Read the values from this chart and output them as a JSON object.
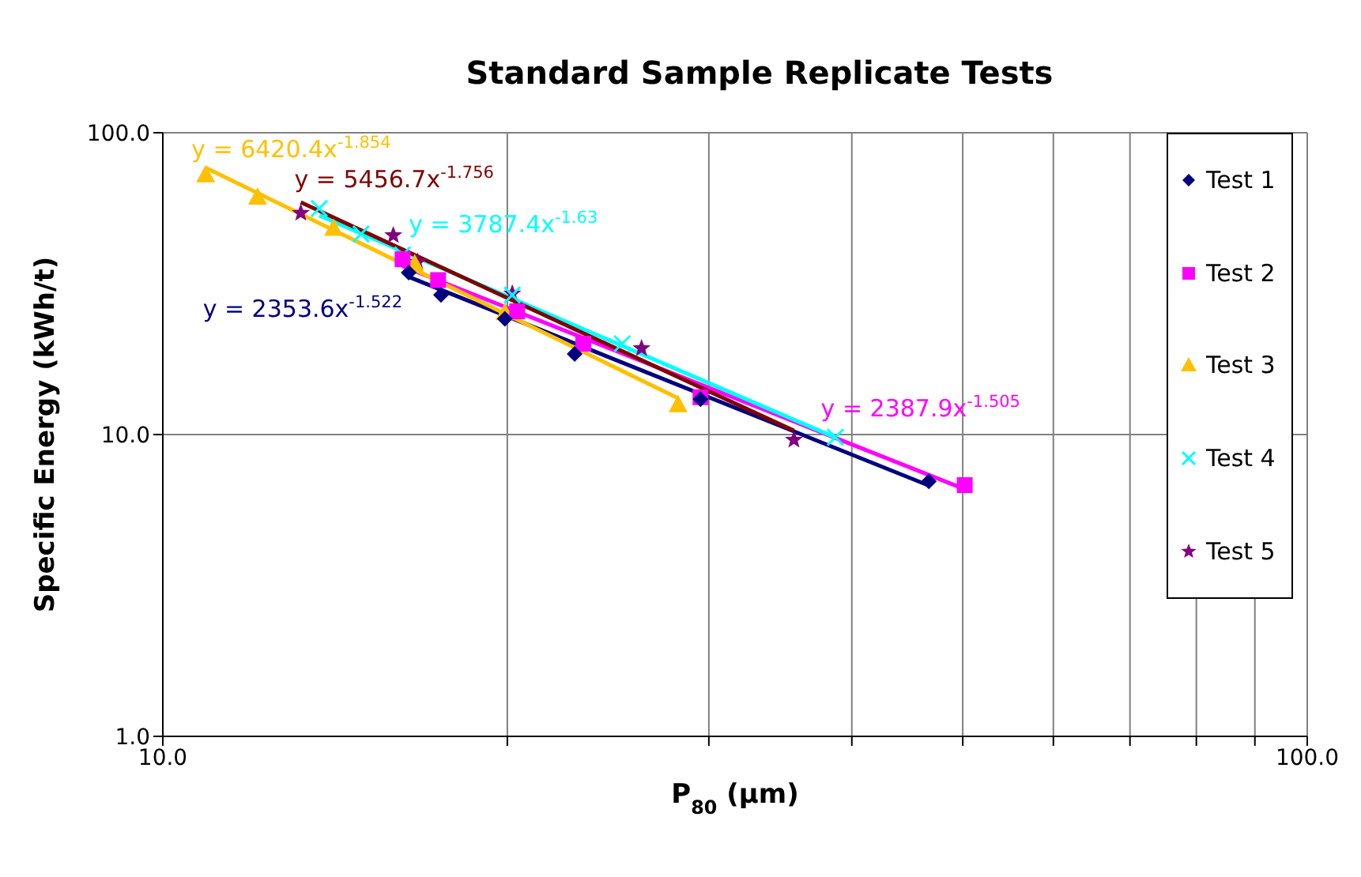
{
  "chart_data": {
    "type": "scatter",
    "title": "Standard Sample Replicate Tests",
    "xlabel": "P$_{80}$ (µm)",
    "ylabel": "Specific Energy (kWh/t)",
    "log": "xy",
    "grid": true,
    "legend": "right",
    "xlim": [
      10,
      100
    ],
    "ylim": [
      1,
      100
    ],
    "xticks": [
      {
        "value": 10,
        "label": "10.0"
      },
      {
        "value": 20,
        "label": null
      },
      {
        "value": 30,
        "label": null
      },
      {
        "value": 40,
        "label": null
      },
      {
        "value": 50,
        "label": null
      },
      {
        "value": 60,
        "label": null
      },
      {
        "value": 70,
        "label": null
      },
      {
        "value": 80,
        "label": null
      },
      {
        "value": 90,
        "label": null
      },
      {
        "value": 100,
        "label": "100.0"
      }
    ],
    "yticks": [
      {
        "value": 1,
        "label": "1.0"
      },
      {
        "value": 10,
        "label": "10.0"
      },
      {
        "value": 100,
        "label": "100.0"
      }
    ],
    "series": [
      {
        "type": "line",
        "marker": "none",
        "color": "#000080",
        "x": [
          16.4,
          46.7
        ],
        "values": [
          33.3,
          6.78
        ]
      },
      {
        "type": "line",
        "marker": "none",
        "color": "#ff00ff",
        "x": [
          16.2,
          50.2
        ],
        "values": [
          36.1,
          6.59
        ]
      },
      {
        "type": "line",
        "marker": "none",
        "color": "#ffc000",
        "x": [
          10.9,
          28.2
        ],
        "values": [
          76.6,
          13.2
        ]
      },
      {
        "type": "line",
        "marker": "none",
        "color": "#00ffff",
        "x": [
          13.7,
          38.7
        ],
        "values": [
          53.2,
          9.78
        ]
      },
      {
        "type": "line",
        "marker": "none",
        "color": "#800000",
        "x": [
          13.2,
          35.6
        ],
        "values": [
          58.8,
          10.3
        ]
      },
      {
        "name": "Test 1",
        "marker": "diamond",
        "color": "#000080",
        "x": [
          16.4,
          17.5,
          19.9,
          22.9,
          29.5,
          46.7
        ],
        "values": [
          34.4,
          29.0,
          24.2,
          18.5,
          13.1,
          7.0
        ]
      },
      {
        "name": "Test 2",
        "marker": "square",
        "color": "#ff00ff",
        "x": [
          16.2,
          17.4,
          20.4,
          23.3,
          29.5,
          50.2
        ],
        "values": [
          38.1,
          32.5,
          25.6,
          20.0,
          13.3,
          6.8
        ]
      },
      {
        "name": "Test 3",
        "marker": "triangle",
        "color": "#ffc000",
        "x": [
          10.9,
          12.1,
          14.1,
          16.6,
          19.9,
          28.2
        ],
        "values": [
          72.8,
          61.4,
          48.4,
          36.9,
          25.4,
          12.6
        ]
      },
      {
        "name": "Test 4",
        "marker": "cross",
        "color": "#00ffff",
        "x": [
          13.7,
          14.9,
          16.2,
          20.2,
          25.2,
          38.7
        ],
        "values": [
          56.1,
          46.2,
          39.4,
          29.0,
          20.0,
          9.8
        ]
      },
      {
        "name": "Test 5",
        "marker": "star",
        "color": "#800080",
        "x": [
          13.2,
          15.9,
          16.7,
          20.2,
          26.2,
          35.6
        ],
        "values": [
          54.2,
          45.7,
          37.3,
          29.3,
          19.3,
          9.6
        ]
      }
    ],
    "annotations": [
      "y = 2353.6x$^{-1.522}$",
      "y = 2387.9x$^{-1.505}$",
      "y = 6420.4x$^{-1.854}$",
      "y = 3787.4x$^{-1.63}$",
      "y = 5456.7x$^{-1.756}$"
    ]
  }
}
